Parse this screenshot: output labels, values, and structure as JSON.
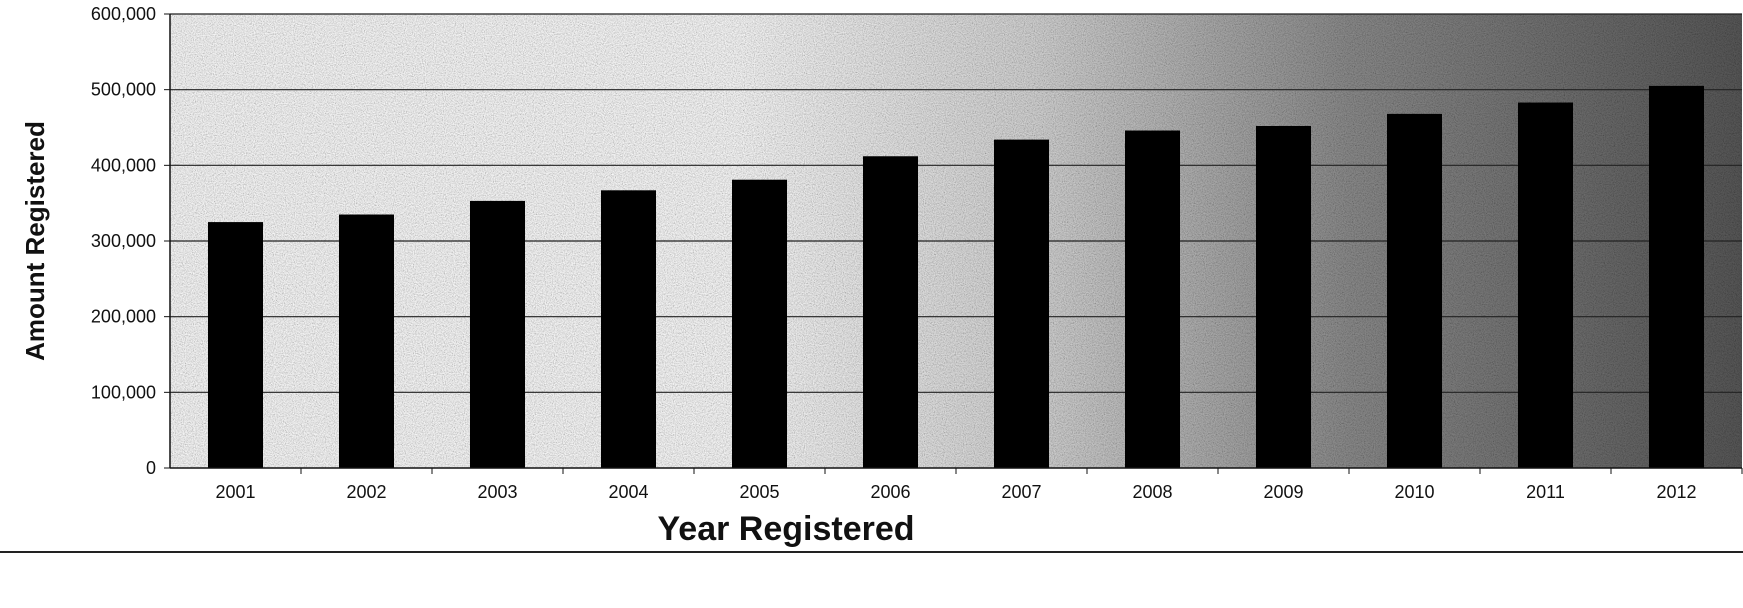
{
  "chart_data": {
    "type": "bar",
    "title": "",
    "xlabel": "Year Registered",
    "ylabel": "Amount Registered",
    "categories": [
      "2001",
      "2002",
      "2003",
      "2004",
      "2005",
      "2006",
      "2007",
      "2008",
      "2009",
      "2010",
      "2011",
      "2012"
    ],
    "values": [
      325000,
      335000,
      353000,
      367000,
      381000,
      412000,
      434000,
      446000,
      452000,
      468000,
      483000,
      505000
    ],
    "ylim": [
      0,
      600000
    ],
    "yticks": [
      "0",
      "100,000",
      "200,000",
      "300,000",
      "400,000",
      "500,000",
      "600,000"
    ],
    "grid": true,
    "legend": "none",
    "bar_color": "#000000",
    "background": "gradient from white (left) to dark gray speckle (right)"
  }
}
